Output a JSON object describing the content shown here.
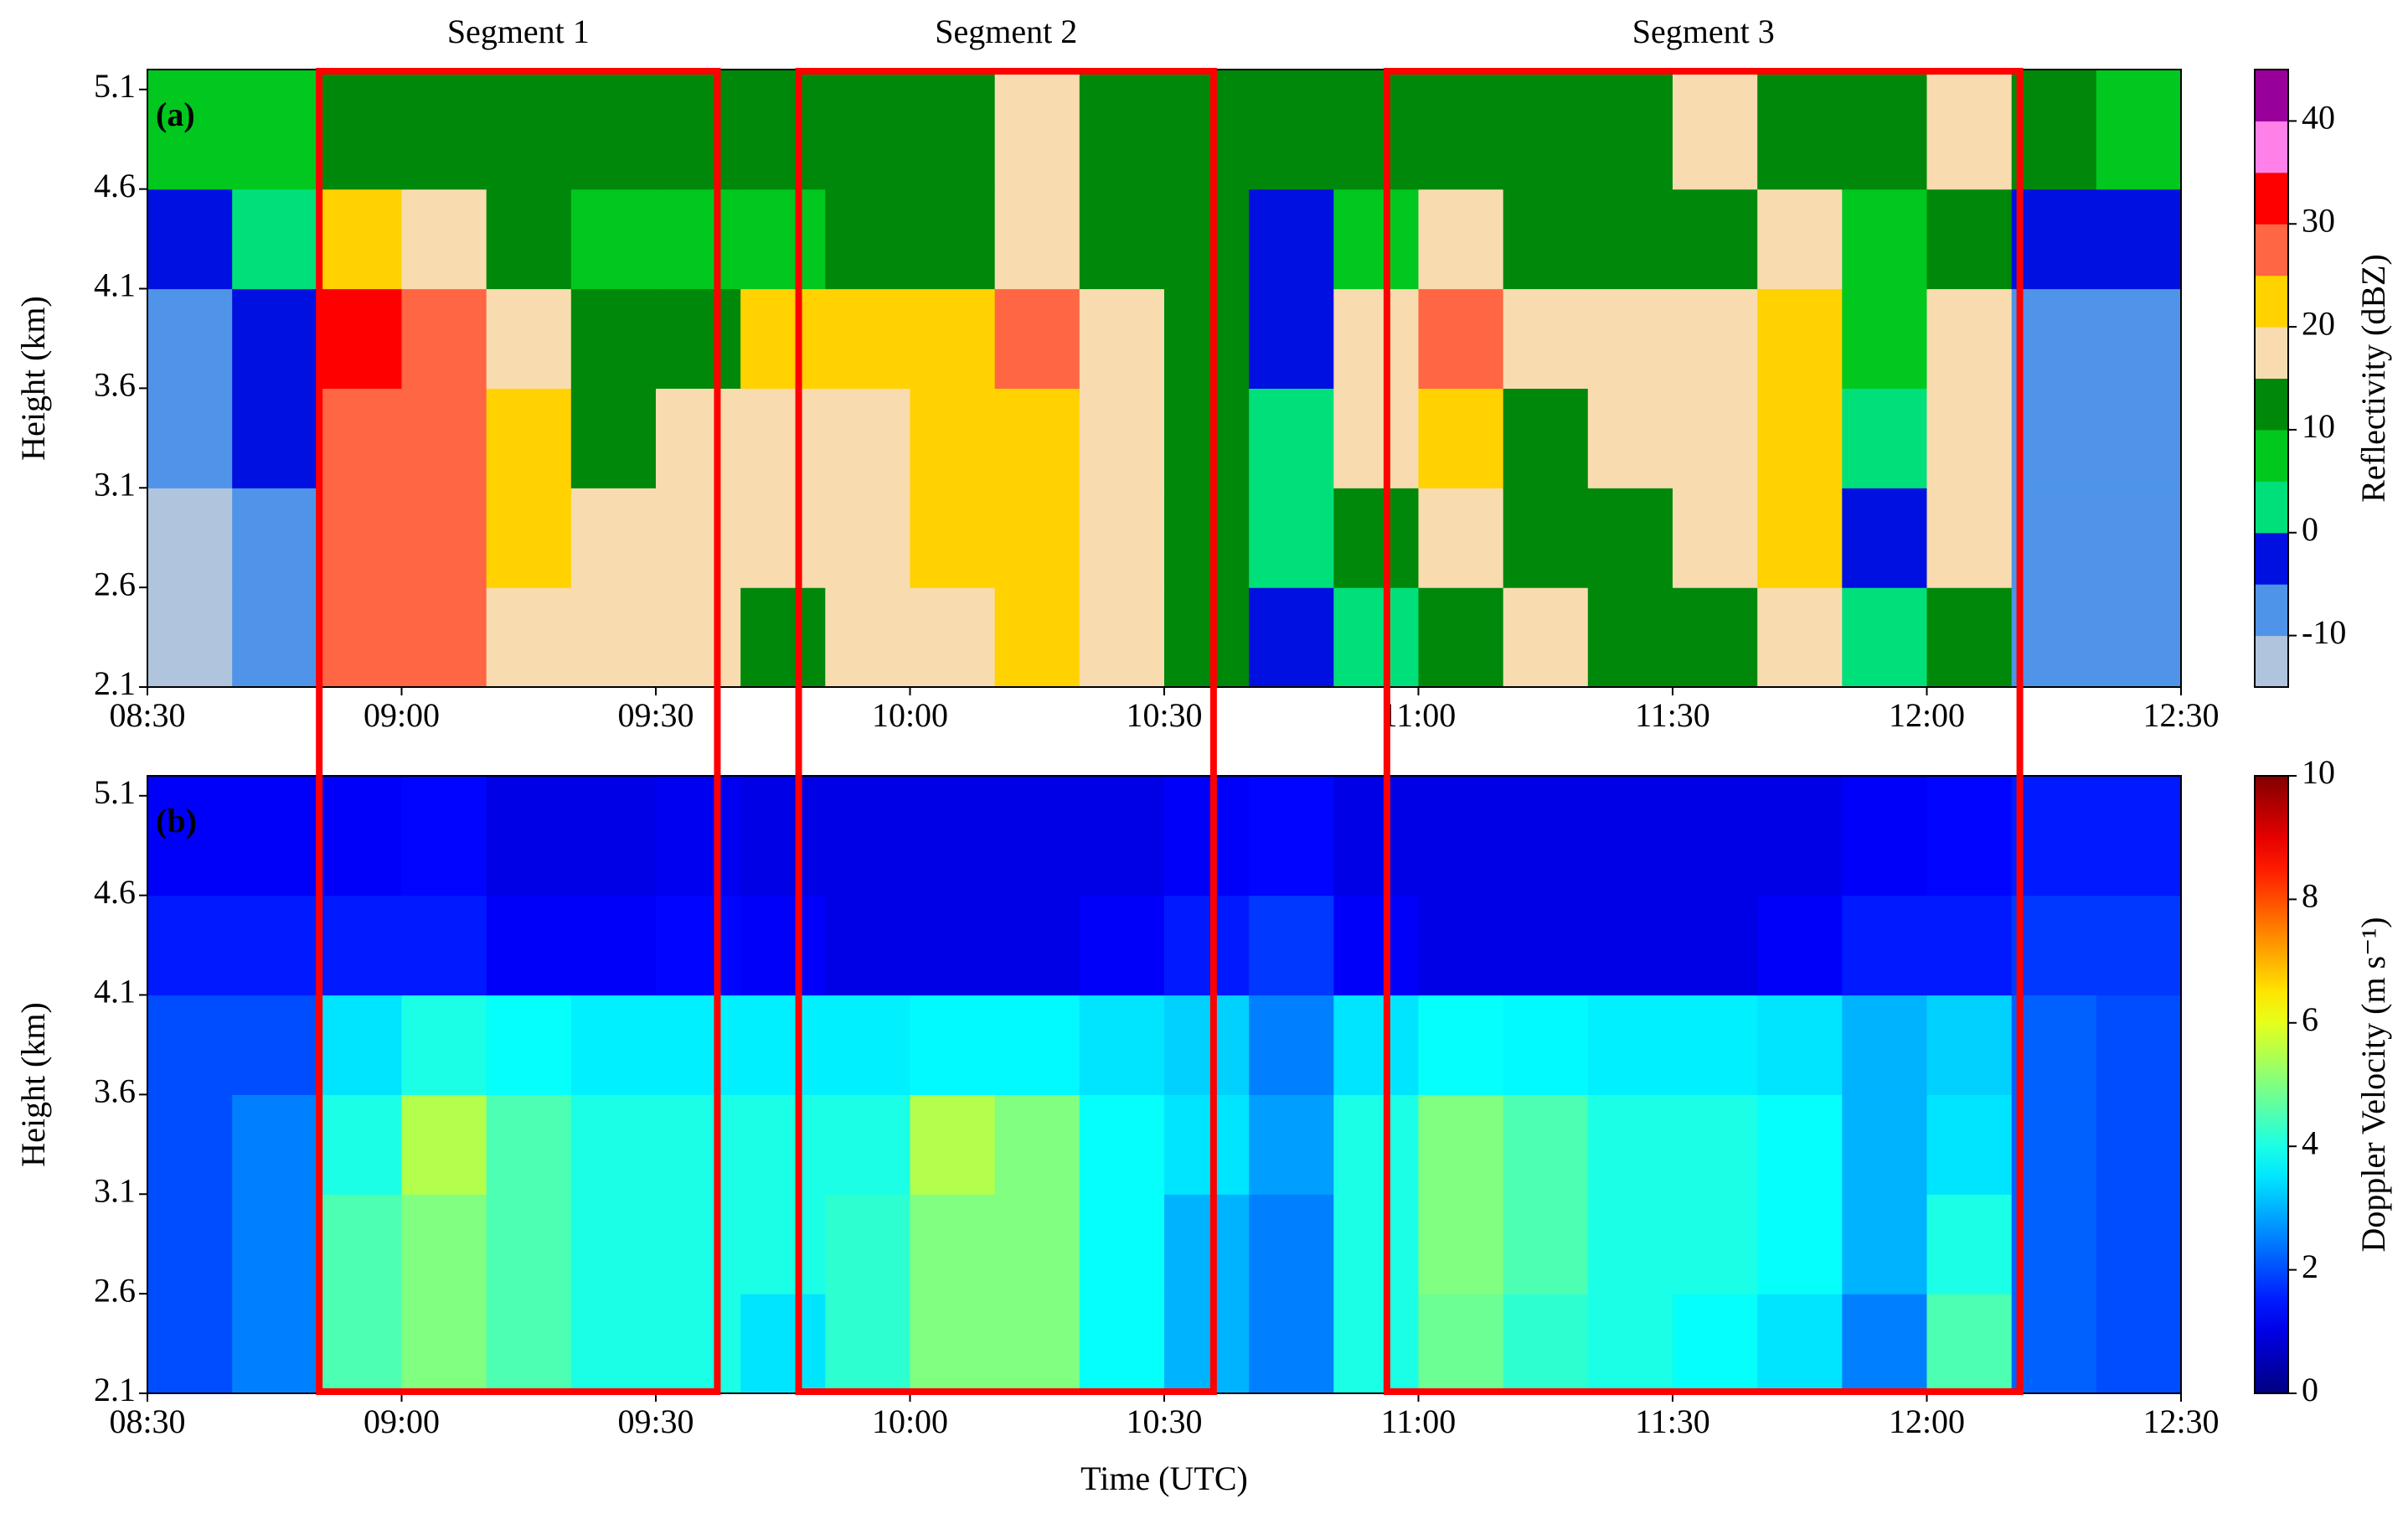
{
  "chart_data": [
    {
      "type": "heatmap",
      "panel_label": "(a)",
      "ylabel": "Height (km)",
      "colorbar_label": "Reflectivity (dBZ)",
      "xlim": [
        8.5,
        12.5
      ],
      "xticks": [
        {
          "value": 8.5,
          "label": "08:30"
        },
        {
          "value": 9,
          "label": "09:00"
        },
        {
          "value": 9.5,
          "label": "09:30"
        },
        {
          "value": 10,
          "label": "10:00"
        },
        {
          "value": 10.5,
          "label": "10:30"
        },
        {
          "value": 11,
          "label": "11:00"
        },
        {
          "value": 11.5,
          "label": "11:30"
        },
        {
          "value": 12,
          "label": "12:00"
        },
        {
          "value": 12.5,
          "label": "12:30"
        }
      ],
      "ylim": [
        2.1,
        5.2
      ],
      "yticks": [
        2.1,
        2.6,
        3.1,
        3.6,
        4.1,
        4.6,
        5.1
      ],
      "xbins": [
        8.5,
        8.6667,
        8.8333,
        9,
        9.1667,
        9.3333,
        9.5,
        9.6667,
        9.8333,
        10,
        10.1667,
        10.3333,
        10.5,
        10.6667,
        10.8333,
        11,
        11.1667,
        11.3333,
        11.5,
        11.6667,
        11.8333,
        12,
        12.1667,
        12.3333,
        12.5
      ],
      "ybins": [
        2.1,
        2.6,
        3.1,
        3.6,
        4.1,
        4.6,
        5.2
      ],
      "values": [
        [
          -12,
          -8,
          27,
          27,
          18,
          17,
          17,
          12,
          17,
          17,
          22,
          17,
          12,
          -5,
          2,
          12,
          17,
          12,
          12,
          17,
          2,
          12,
          -10,
          -10
        ],
        [
          -12,
          -8,
          27,
          27,
          22,
          17,
          17,
          17,
          17,
          22,
          22,
          17,
          12,
          2,
          12,
          17,
          12,
          12,
          17,
          20,
          -3,
          17,
          -8,
          -10
        ],
        [
          -10,
          -5,
          28,
          27,
          24,
          13,
          17,
          17,
          17,
          22,
          22,
          17,
          12,
          2,
          17,
          22,
          12,
          17,
          17,
          22,
          2,
          17,
          -8,
          -8
        ],
        [
          -8,
          -5,
          30,
          28,
          18,
          12,
          12,
          20,
          22,
          24,
          27,
          18,
          12,
          -2,
          17,
          26,
          17,
          17,
          18,
          22,
          8,
          17,
          -8,
          -8
        ],
        [
          -3,
          2,
          22,
          17,
          12,
          8,
          8,
          8,
          12,
          14,
          17,
          12,
          12,
          -3,
          8,
          17,
          12,
          12,
          12,
          17,
          5,
          12,
          -2,
          -3
        ],
        [
          5,
          8,
          14,
          12,
          10,
          12,
          10,
          12,
          12,
          12,
          17,
          12,
          12,
          10,
          12,
          12,
          12,
          12,
          17,
          12,
          12,
          17,
          10,
          8
        ]
      ],
      "levels": [
        -15,
        -10,
        -5,
        0,
        5,
        10,
        15,
        20,
        25,
        30,
        35,
        40,
        45
      ],
      "colors": [
        "#b0c4de",
        "#4f94e8",
        "#0010e0",
        "#00e07a",
        "#00c81e",
        "#00880a",
        "#f8dcb0",
        "#ffd200",
        "#ff6644",
        "#ff0000",
        "#ff80e8",
        "#990099"
      ],
      "cticks": [
        -10,
        0,
        10,
        20,
        30,
        40
      ]
    },
    {
      "type": "heatmap",
      "panel_label": "(b)",
      "ylabel": "Height (km)",
      "xlabel": "Time (UTC)",
      "colorbar_label": "Doppler Velocity (m s⁻¹)",
      "xlim": [
        8.5,
        12.5
      ],
      "xticks": [
        {
          "value": 8.5,
          "label": "08:30"
        },
        {
          "value": 9,
          "label": "09:00"
        },
        {
          "value": 9.5,
          "label": "09:30"
        },
        {
          "value": 10,
          "label": "10:00"
        },
        {
          "value": 10.5,
          "label": "10:30"
        },
        {
          "value": 11,
          "label": "11:00"
        },
        {
          "value": 11.5,
          "label": "11:30"
        },
        {
          "value": 12,
          "label": "12:00"
        },
        {
          "value": 12.5,
          "label": "12:30"
        }
      ],
      "ylim": [
        2.1,
        5.2
      ],
      "yticks": [
        2.1,
        2.6,
        3.1,
        3.6,
        4.1,
        4.6,
        5.1
      ],
      "xbins": [
        8.5,
        8.6667,
        8.8333,
        9,
        9.1667,
        9.3333,
        9.5,
        9.6667,
        9.8333,
        10,
        10.1667,
        10.3333,
        10.5,
        10.6667,
        10.8333,
        11,
        11.1667,
        11.3333,
        11.5,
        11.6667,
        11.8333,
        12,
        12.1667,
        12.3333,
        12.5
      ],
      "ybins": [
        2.1,
        2.6,
        3.1,
        3.6,
        4.1,
        4.6,
        5.2
      ],
      "values": [
        [
          2,
          2.5,
          4.5,
          5,
          4.5,
          4,
          4,
          3.5,
          4.2,
          5,
          5,
          3.8,
          3,
          2.5,
          4,
          4.8,
          4.2,
          4,
          3.8,
          3.5,
          2.5,
          4.5,
          2.2,
          2
        ],
        [
          2,
          2.5,
          4.5,
          5,
          4.5,
          4,
          4,
          4,
          4.2,
          5,
          5,
          3.8,
          3,
          2.5,
          4,
          5,
          4.5,
          4,
          4,
          3.8,
          3,
          4,
          2.2,
          2
        ],
        [
          2,
          2.5,
          4,
          5.5,
          4.5,
          4,
          4,
          4,
          4,
          5.5,
          5,
          3.8,
          3.5,
          2.8,
          4,
          5,
          4.5,
          4,
          4,
          3.8,
          3,
          3.5,
          2.2,
          2
        ],
        [
          2,
          2,
          3.5,
          4,
          3.8,
          3.6,
          3.6,
          3.6,
          3.6,
          3.7,
          3.7,
          3.5,
          3.3,
          2.5,
          3.5,
          3.8,
          3.7,
          3.6,
          3.6,
          3.5,
          3,
          3.3,
          2.2,
          2
        ],
        [
          1.5,
          1.5,
          1.5,
          1.5,
          1.2,
          1.2,
          1.3,
          1.2,
          1,
          1,
          1,
          1.2,
          1.5,
          1.8,
          1.2,
          1,
          1,
          1,
          1,
          1.2,
          1.5,
          1.5,
          1.8,
          1.8
        ],
        [
          1.2,
          1.2,
          1.2,
          1.3,
          1,
          1,
          1.1,
          1,
          1,
          1,
          1,
          1,
          1.2,
          1.3,
          1,
          1,
          1,
          1,
          1,
          1,
          1.2,
          1.3,
          1.5,
          1.5
        ]
      ],
      "colormap": "jet",
      "clim": [
        0,
        10
      ],
      "cticks": [
        0,
        2,
        4,
        6,
        8,
        10
      ]
    }
  ],
  "segments": [
    {
      "text": "Segment 1",
      "start": 8.838,
      "end": 9.621
    },
    {
      "text": "Segment 2",
      "start": 9.781,
      "end": 10.597
    },
    {
      "text": "Segment 3",
      "start": 10.938,
      "end": 12.183
    }
  ]
}
